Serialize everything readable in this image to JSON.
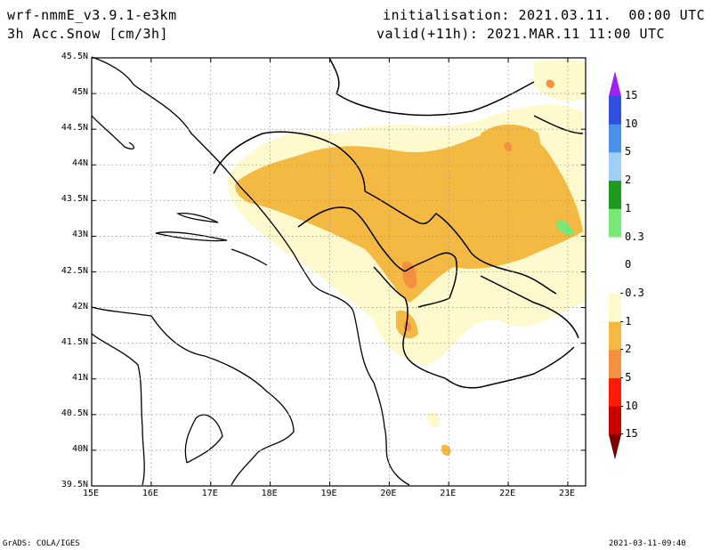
{
  "header": {
    "model": "wrf-nmmE_v3.9.1-e3km",
    "variable": "3h Acc.Snow [cm/3h]",
    "init": "initialisation: 2021.03.11.  00:00 UTC",
    "valid": "valid(+11h): 2021.MAR.11 11:00 UTC"
  },
  "map": {
    "lat_labels": [
      "45.5N",
      "45N",
      "44.5N",
      "44N",
      "43.5N",
      "43N",
      "42.5N",
      "42N",
      "41.5N",
      "41N",
      "40.5N",
      "40N",
      "39.5N"
    ],
    "lon_labels": [
      "15E",
      "16E",
      "17E",
      "18E",
      "19E",
      "20E",
      "21E",
      "22E",
      "23E"
    ],
    "lat_range": [
      39.5,
      45.5
    ],
    "lon_range": [
      15,
      23.3
    ],
    "grid": "dotted"
  },
  "colorbar": {
    "labels": [
      "15",
      "10",
      "5",
      "2",
      "1",
      "0.3",
      "0",
      "-0.3",
      "-1",
      "-2",
      "-5",
      "-10",
      "-15"
    ],
    "colors": [
      "#a020f0",
      "#2f4fdf",
      "#4a90e8",
      "#9fcff5",
      "#1e9b1e",
      "#78e878",
      "#ffffff",
      "#fffacd",
      "#f4b942",
      "#f59040",
      "#ff1a00",
      "#c80000",
      "#7a0000"
    ]
  },
  "footer": {
    "left": "GrADS: COLA/IGES",
    "right": "2021-03-11-09:40"
  }
}
